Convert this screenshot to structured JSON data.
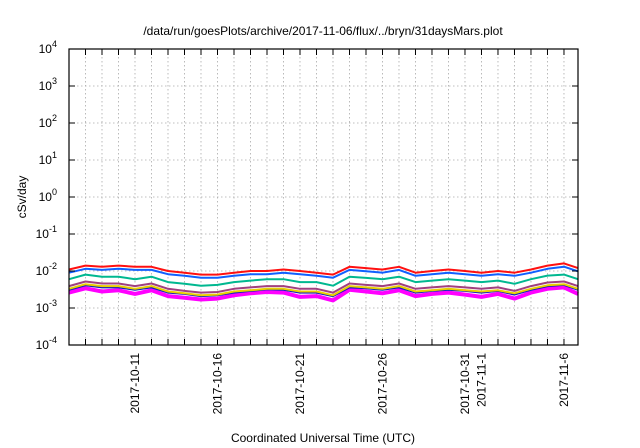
{
  "chart_data": {
    "type": "line",
    "title": "/data/run/goesPlots/archive/2017-11-06/flux/../bryn/31daysMars.plot",
    "xlabel": "Coordinated Universal Time (UTC)",
    "ylabel": "cSv/day",
    "yscale": "log",
    "ylim": [
      0.0001,
      10000
    ],
    "x_units": "days since 2017-10-07 00:00 UTC",
    "xlim": [
      0,
      30.85
    ],
    "grid": true,
    "legend": "none",
    "y_ticks": [
      {
        "value": 10000,
        "base": "10",
        "exp": "4"
      },
      {
        "value": 1000,
        "base": "10",
        "exp": "3"
      },
      {
        "value": 100,
        "base": "10",
        "exp": "2"
      },
      {
        "value": 10,
        "base": "10",
        "exp": "1"
      },
      {
        "value": 1,
        "base": "10",
        "exp": "0"
      },
      {
        "value": 0.1,
        "base": "10",
        "exp": "-1"
      },
      {
        "value": 0.01,
        "base": "10",
        "exp": "-2"
      },
      {
        "value": 0.001,
        "base": "10",
        "exp": "-3"
      },
      {
        "value": 0.0001,
        "base": "10",
        "exp": "-4"
      }
    ],
    "x_ticks": [
      {
        "value": 4,
        "label": "2017-10-11"
      },
      {
        "value": 9,
        "label": "2017-10-16"
      },
      {
        "value": 14,
        "label": "2017-10-21"
      },
      {
        "value": 19,
        "label": "2017-10-26"
      },
      {
        "value": 24,
        "label": "2017-10-31"
      },
      {
        "value": 25,
        "label": "2017-11-1"
      },
      {
        "value": 30,
        "label": "2017-11-6"
      }
    ],
    "x": [
      0,
      1,
      2,
      3,
      4,
      5,
      6,
      7,
      8,
      9,
      10,
      11,
      12,
      13,
      14,
      15,
      16,
      17,
      18,
      19,
      20,
      21,
      22,
      23,
      24,
      25,
      26,
      27,
      28,
      29,
      30,
      30.85
    ],
    "series": [
      {
        "name": "magenta",
        "color": "#ff00ff",
        "values": [
          0.0026,
          0.0034,
          0.0028,
          0.003,
          0.0024,
          0.003,
          0.0021,
          0.0019,
          0.0017,
          0.0018,
          0.0022,
          0.0025,
          0.0027,
          0.0026,
          0.002,
          0.0021,
          0.0016,
          0.0031,
          0.0028,
          0.0025,
          0.003,
          0.0021,
          0.0024,
          0.0026,
          0.0023,
          0.002,
          0.0024,
          0.0018,
          0.0026,
          0.0033,
          0.0036,
          0.0024
        ]
      },
      {
        "name": "dark-blue",
        "color": "#1020c0",
        "values": [
          0.0031,
          0.0041,
          0.0036,
          0.0036,
          0.0031,
          0.0036,
          0.0026,
          0.0024,
          0.0021,
          0.0022,
          0.0026,
          0.0029,
          0.0032,
          0.0031,
          0.0026,
          0.0026,
          0.0021,
          0.0036,
          0.0034,
          0.0031,
          0.0036,
          0.0026,
          0.0029,
          0.0031,
          0.0029,
          0.0026,
          0.0029,
          0.0023,
          0.0031,
          0.0039,
          0.0042,
          0.0031
        ]
      },
      {
        "name": "yellow",
        "color": "#e8d000",
        "values": [
          0.0033,
          0.0044,
          0.0039,
          0.0039,
          0.0033,
          0.0039,
          0.0028,
          0.0025,
          0.0022,
          0.0023,
          0.0028,
          0.003,
          0.0033,
          0.0033,
          0.0028,
          0.0028,
          0.0022,
          0.0039,
          0.0036,
          0.0033,
          0.0039,
          0.0028,
          0.003,
          0.0033,
          0.003,
          0.0028,
          0.003,
          0.0025,
          0.0033,
          0.0041,
          0.0044,
          0.0033
        ]
      },
      {
        "name": "purple",
        "color": "#a04080",
        "values": [
          0.0039,
          0.0052,
          0.0046,
          0.0046,
          0.0039,
          0.0046,
          0.0033,
          0.0029,
          0.0026,
          0.0027,
          0.0033,
          0.0036,
          0.0039,
          0.0039,
          0.0033,
          0.0033,
          0.0026,
          0.0046,
          0.0042,
          0.0039,
          0.0046,
          0.0033,
          0.0036,
          0.0039,
          0.0036,
          0.0033,
          0.0036,
          0.0029,
          0.0039,
          0.0049,
          0.0052,
          0.0039
        ]
      },
      {
        "name": "teal",
        "color": "#00b890",
        "values": [
          0.006,
          0.008,
          0.007,
          0.007,
          0.006,
          0.007,
          0.005,
          0.0045,
          0.004,
          0.0042,
          0.005,
          0.0055,
          0.006,
          0.006,
          0.005,
          0.005,
          0.004,
          0.007,
          0.0065,
          0.006,
          0.007,
          0.005,
          0.0055,
          0.006,
          0.0055,
          0.005,
          0.0055,
          0.0045,
          0.006,
          0.0075,
          0.008,
          0.006
        ]
      },
      {
        "name": "blue",
        "color": "#1060ff",
        "values": [
          0.009,
          0.0115,
          0.0107,
          0.0115,
          0.0107,
          0.0107,
          0.0082,
          0.0074,
          0.0066,
          0.0066,
          0.0074,
          0.0082,
          0.0082,
          0.009,
          0.0082,
          0.0074,
          0.0066,
          0.0107,
          0.0098,
          0.009,
          0.0107,
          0.0074,
          0.0082,
          0.009,
          0.0082,
          0.0074,
          0.0082,
          0.0074,
          0.009,
          0.0115,
          0.0131,
          0.0098
        ]
      },
      {
        "name": "red",
        "color": "#ff1010",
        "values": [
          0.011,
          0.014,
          0.013,
          0.014,
          0.013,
          0.013,
          0.01,
          0.009,
          0.008,
          0.008,
          0.009,
          0.01,
          0.01,
          0.011,
          0.01,
          0.009,
          0.008,
          0.013,
          0.012,
          0.011,
          0.013,
          0.009,
          0.01,
          0.011,
          0.01,
          0.009,
          0.01,
          0.009,
          0.011,
          0.014,
          0.016,
          0.012
        ]
      }
    ]
  }
}
